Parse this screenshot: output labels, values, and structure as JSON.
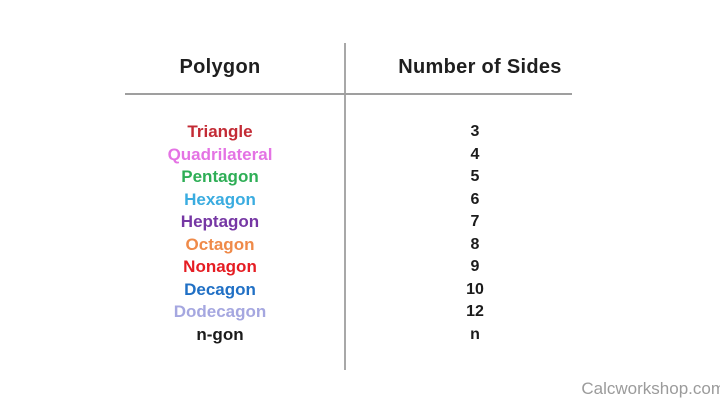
{
  "table": {
    "headers": {
      "polygon": "Polygon",
      "sides": "Number of Sides"
    },
    "rows": [
      {
        "name": "Triangle",
        "sides": "3",
        "color": "#c32b35"
      },
      {
        "name": "Quadrilateral",
        "sides": "4",
        "color": "#e473e4"
      },
      {
        "name": "Pentagon",
        "sides": "5",
        "color": "#2eae56"
      },
      {
        "name": "Hexagon",
        "sides": "6",
        "color": "#3aace0"
      },
      {
        "name": "Heptagon",
        "sides": "7",
        "color": "#7637a4"
      },
      {
        "name": "Octagon",
        "sides": "8",
        "color": "#ef8a49"
      },
      {
        "name": "Nonagon",
        "sides": "9",
        "color": "#e51d23"
      },
      {
        "name": "Decagon",
        "sides": "10",
        "color": "#2070c5"
      },
      {
        "name": "Dodecagon",
        "sides": "12",
        "color": "#a5a7e0"
      },
      {
        "name": "n-gon",
        "sides": "n",
        "color": "#1b1b1b"
      }
    ],
    "header_text_color": "#1f1f1f",
    "number_color": "#1b1b1b",
    "divider_color": "#a3a3a3"
  },
  "watermark": {
    "text": "Calcworkshop.com",
    "color": "#9b9b9b"
  },
  "chart_data": {
    "type": "table",
    "title": "",
    "columns": [
      "Polygon",
      "Number of Sides"
    ],
    "rows": [
      [
        "Triangle",
        3
      ],
      [
        "Quadrilateral",
        4
      ],
      [
        "Pentagon",
        5
      ],
      [
        "Hexagon",
        6
      ],
      [
        "Heptagon",
        7
      ],
      [
        "Octagon",
        8
      ],
      [
        "Nonagon",
        9
      ],
      [
        "Decagon",
        10
      ],
      [
        "Dodecagon",
        12
      ],
      [
        "n-gon",
        "n"
      ]
    ]
  }
}
